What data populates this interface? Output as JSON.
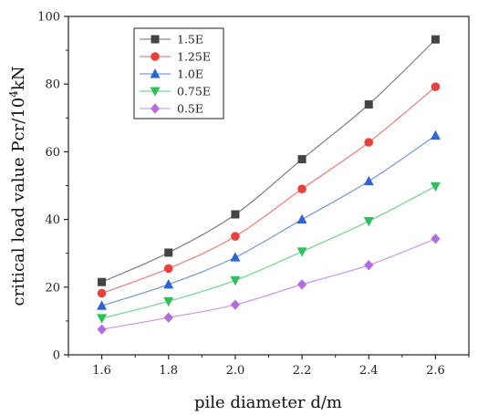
{
  "chart_data": {
    "type": "line",
    "title": "",
    "xlabel": "pile diameter d/m",
    "ylabel_main": "critical load value Pcr/10",
    "ylabel_sup": "4",
    "ylabel_unit": "kN",
    "x": [
      1.6,
      1.8,
      2.0,
      2.2,
      2.4,
      2.6
    ],
    "x_tick_labels": [
      "1.6",
      "1.8",
      "2.0",
      "2.2",
      "2.4",
      "2.6"
    ],
    "xlim": [
      1.5,
      2.7
    ],
    "ylim": [
      0,
      100
    ],
    "y_ticks": [
      0,
      20,
      40,
      60,
      80,
      100
    ],
    "y_tick_labels": [
      "0",
      "20",
      "40",
      "60",
      "80",
      "100"
    ],
    "grid": false,
    "legend_position": "top-left",
    "series": [
      {
        "name": "1.5E",
        "color": "#444444",
        "marker": "square",
        "values": [
          21.5,
          30.2,
          41.5,
          57.8,
          74.0,
          93.2
        ]
      },
      {
        "name": "1.25E",
        "color": "#e8403b",
        "marker": "circle",
        "values": [
          18.2,
          25.5,
          35.0,
          49.0,
          62.8,
          79.2
        ]
      },
      {
        "name": "1.0E",
        "color": "#2f64d6",
        "marker": "triangle-up",
        "values": [
          14.5,
          20.8,
          28.8,
          40.0,
          51.3,
          64.8
        ]
      },
      {
        "name": "0.75E",
        "color": "#2ec05a",
        "marker": "triangle-down",
        "values": [
          10.8,
          15.8,
          22.0,
          30.5,
          39.5,
          49.8
        ]
      },
      {
        "name": "0.5E",
        "color": "#b46be0",
        "marker": "diamond",
        "values": [
          7.5,
          11.0,
          14.8,
          20.8,
          26.5,
          34.3
        ]
      }
    ]
  }
}
